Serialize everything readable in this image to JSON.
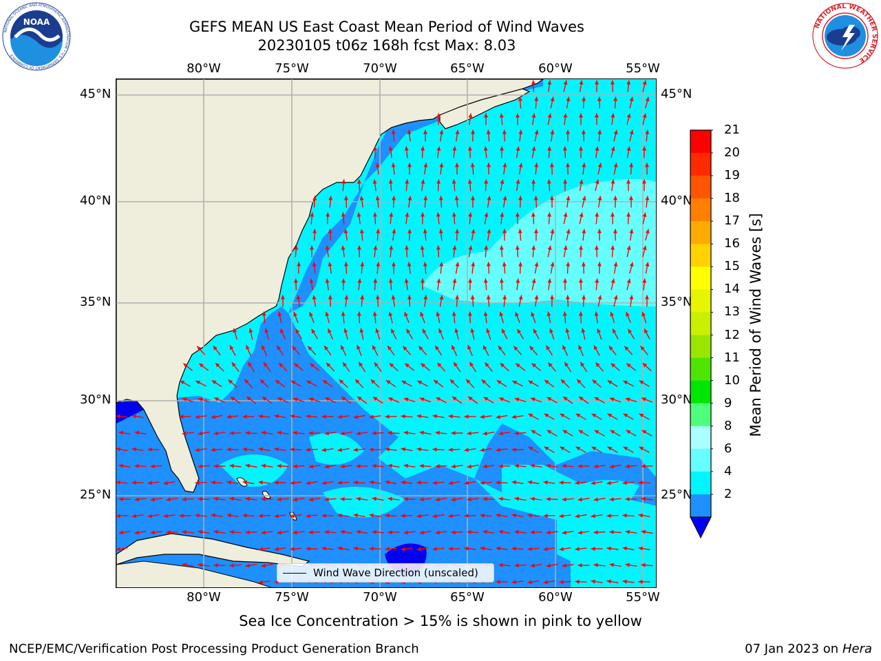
{
  "title": {
    "line1": "GEFS MEAN US East Coast Mean Period of Wind Waves",
    "line2": "20230105 t06z 168h fcst   Max: 8.03"
  },
  "map": {
    "lon_labels": [
      "80°W",
      "75°W",
      "70°W",
      "65°W",
      "60°W",
      "55°W"
    ],
    "lat_labels": [
      "45°N",
      "40°N",
      "35°N",
      "30°N",
      "25°N"
    ],
    "lon_range": [
      -85,
      -54.2
    ],
    "lat_range": [
      20,
      46
    ],
    "legend_label": "Wind Wave Direction (unscaled)",
    "colors": {
      "land": "#efeedd",
      "ocean_period_2_4": "#1e90ff",
      "ocean_period_4_6": "#00f5ff",
      "ocean_period_6_8": "#66ffff",
      "ocean_below_2": "#0000f0",
      "arrows": "#ff0000",
      "grid": "#b0b0b0"
    }
  },
  "colorbar": {
    "title": "Mean Period of Wind Waves [s]",
    "ticks": [
      "21",
      "20",
      "19",
      "18",
      "17",
      "16",
      "15",
      "14",
      "13",
      "12",
      "11",
      "10",
      "9",
      "8",
      "6",
      "4",
      "2"
    ],
    "colors": [
      "#ff0000",
      "#ff2a00",
      "#ff5500",
      "#ff7f00",
      "#ffaa00",
      "#ffd200",
      "#ffff00",
      "#e6f500",
      "#c8f000",
      "#9ae600",
      "#4ee600",
      "#00e600",
      "#4dff7a",
      "#aaffff",
      "#66ffff",
      "#00f5ff",
      "#1e90ff",
      "#0000f0"
    ]
  },
  "ice_note": "Sea Ice Concentration > 15% is shown in pink to yellow",
  "footer": {
    "left": "NCEP/EMC/Verification Post Processing Product Generation Branch",
    "right_date": "07 Jan 2023 on ",
    "right_host": "Hera"
  },
  "logos": {
    "noaa_text": "NOAA",
    "noaa_ring": "NATIONAL OCEANIC AND ATMOSPHERIC ADMINISTRATION • U.S. DEPARTMENT OF COMMERCE",
    "nws_ring": "NATIONAL WEATHER SERVICE"
  }
}
